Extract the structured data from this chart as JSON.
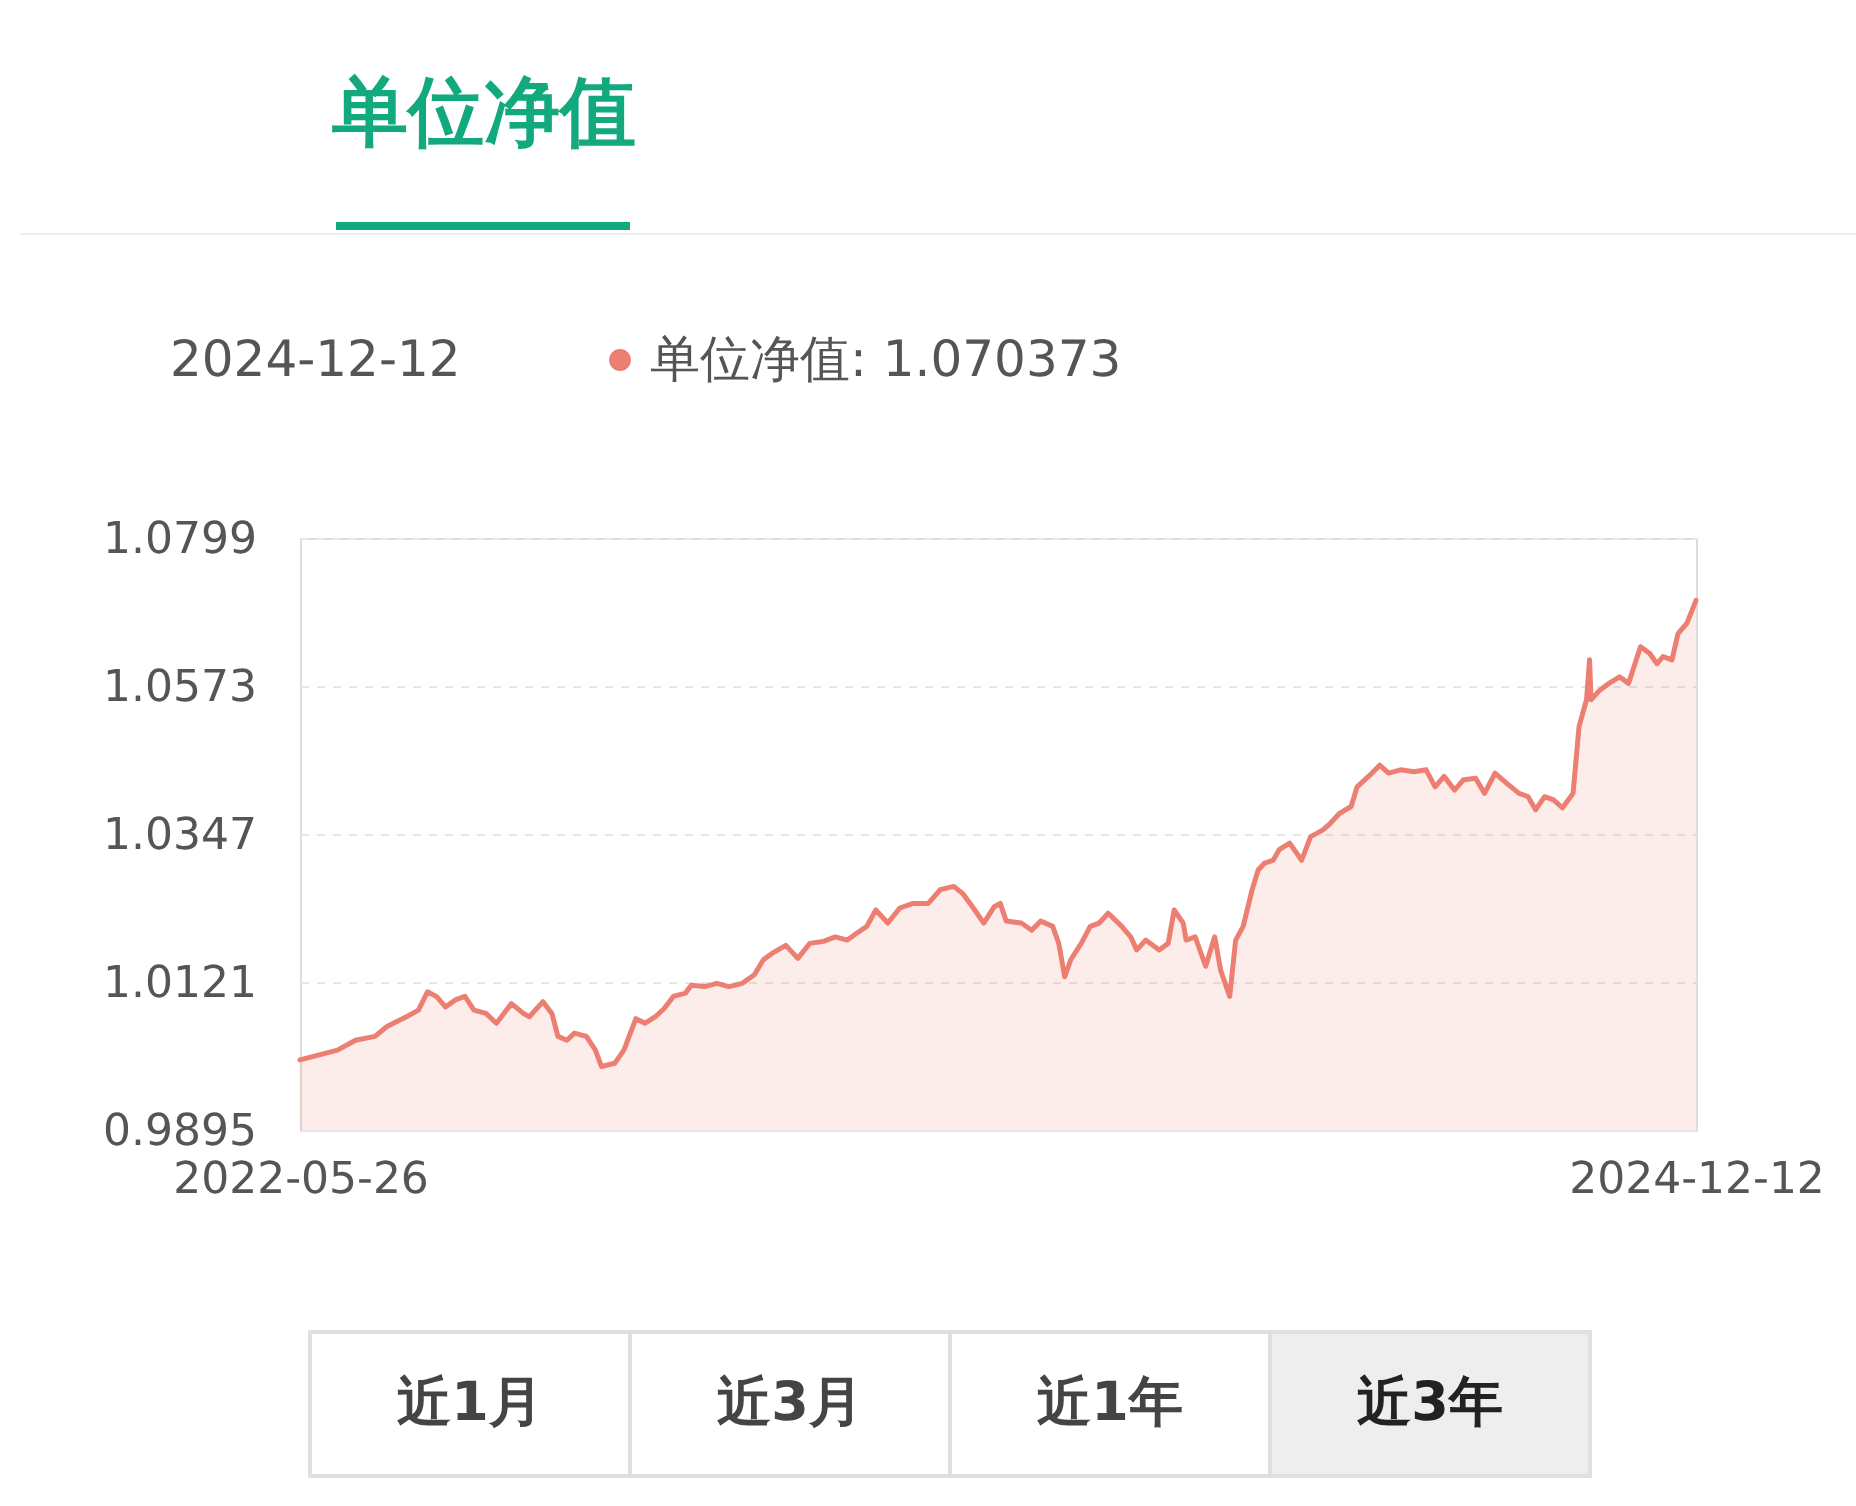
{
  "chart_data": {
    "type": "area",
    "title": "单位净值",
    "annotations": [
      "2024-12-12",
      ": 1.070373",
      "近1月",
      "近3月",
      "近1年",
      "近3年"
    ],
    "x": [
      "2022-05-26",
      "2022-06-20",
      "2022-07-02",
      "2022-07-15",
      "2022-07-23",
      "2022-08-05",
      "2022-08-13",
      "2022-08-19",
      "2022-08-25",
      "2022-08-31",
      "2022-09-07",
      "2022-09-13",
      "2022-09-19",
      "2022-09-27",
      "2022-10-04",
      "2022-10-14",
      "2022-10-22",
      "2022-10-26",
      "2022-11-04",
      "2022-11-10",
      "2022-11-14",
      "2022-11-20",
      "2022-11-25",
      "2022-12-03",
      "2022-12-09",
      "2022-12-13",
      "2022-12-22",
      "2022-12-28",
      "2023-01-05",
      "2023-01-11",
      "2023-01-18",
      "2023-01-24",
      "2023-01-30",
      "2023-02-07",
      "2023-02-11",
      "2023-02-20",
      "2023-02-28",
      "2023-03-08",
      "2023-03-17",
      "2023-03-25",
      "2023-03-31",
      "2023-04-06",
      "2023-04-15",
      "2023-04-23",
      "2023-05-01",
      "2023-05-10",
      "2023-05-18",
      "2023-05-26",
      "2023-06-01",
      "2023-06-08",
      "2023-06-14",
      "2023-06-22",
      "2023-06-30",
      "2023-07-09",
      "2023-07-19",
      "2023-07-27",
      "2023-08-05",
      "2023-08-11",
      "2023-08-19",
      "2023-08-25",
      "2023-09-01",
      "2023-09-05",
      "2023-09-09",
      "2023-09-19",
      "2023-09-26",
      "2023-10-02",
      "2023-10-10",
      "2023-10-14",
      "2023-10-18",
      "2023-10-22",
      "2023-10-29",
      "2023-11-04",
      "2023-11-10",
      "2023-11-16",
      "2023-11-25",
      "2023-12-01",
      "2023-12-05",
      "2023-12-11",
      "2023-12-20",
      "2023-12-26",
      "2023-12-30",
      "2024-01-05",
      "2024-01-07",
      "2024-01-13",
      "2024-01-20",
      "2024-01-26",
      "2024-01-30",
      "2024-02-05",
      "2024-02-09",
      "2024-02-14",
      "2024-02-20",
      "2024-02-24",
      "2024-02-28",
      "2024-03-05",
      "2024-03-09",
      "2024-03-16",
      "2024-03-24",
      "2024-03-30",
      "2024-04-07",
      "2024-04-12",
      "2024-04-18",
      "2024-04-26",
      "2024-04-30",
      "2024-05-09",
      "2024-05-15",
      "2024-05-21",
      "2024-05-29",
      "2024-06-07",
      "2024-06-15",
      "2024-06-21",
      "2024-06-27",
      "2024-07-04",
      "2024-07-10",
      "2024-07-18",
      "2024-07-24",
      "2024-07-31",
      "2024-08-08",
      "2024-08-16",
      "2024-08-22",
      "2024-08-27",
      "2024-09-02",
      "2024-09-08",
      "2024-09-14",
      "2024-09-21",
      "2024-09-25",
      "2024-09-30",
      "2024-10-02",
      "2024-10-03",
      "2024-10-09",
      "2024-10-15",
      "2024-10-22",
      "2024-10-28",
      "2024-11-05",
      "2024-11-11",
      "2024-11-16",
      "2024-11-20",
      "2024-11-26",
      "2024-11-30",
      "2024-12-06",
      "2024-12-12"
    ],
    "series": [
      {
        "name": "单位净值",
        "color": "#ec7f72",
        "values": [
          1.0002,
          1.0017,
          1.0032,
          1.0038,
          1.0053,
          1.0068,
          1.0078,
          1.0106,
          1.0099,
          1.0083,
          1.0094,
          1.0099,
          1.0078,
          1.0073,
          1.0058,
          1.0088,
          1.0073,
          1.0068,
          1.0091,
          1.0073,
          1.0038,
          1.0032,
          1.0043,
          1.0038,
          1.0017,
          0.9992,
          0.9997,
          1.0017,
          1.0065,
          1.0058,
          1.0068,
          1.0081,
          1.0099,
          1.0104,
          1.0116,
          1.0114,
          1.0119,
          1.0114,
          1.0119,
          1.0132,
          1.0155,
          1.0165,
          1.0177,
          1.0157,
          1.018,
          1.0183,
          1.019,
          1.0185,
          1.0195,
          1.0206,
          1.0231,
          1.0211,
          1.0234,
          1.0241,
          1.0241,
          1.0262,
          1.0267,
          1.0256,
          1.0231,
          1.0211,
          1.0236,
          1.0241,
          1.0214,
          1.0211,
          1.02,
          1.0214,
          1.0206,
          1.018,
          1.0129,
          1.0155,
          1.018,
          1.0206,
          1.0211,
          1.0226,
          1.0206,
          1.019,
          1.017,
          1.0185,
          1.017,
          1.018,
          1.0231,
          1.0211,
          1.0185,
          1.019,
          1.0145,
          1.019,
          1.0139,
          1.0099,
          1.0185,
          1.0206,
          1.0262,
          1.0292,
          1.0302,
          1.0307,
          1.0323,
          1.0333,
          1.0307,
          1.0343,
          1.0353,
          1.0363,
          1.0378,
          1.0389,
          1.0419,
          1.0438,
          1.0452,
          1.044,
          1.0445,
          1.0442,
          1.0445,
          1.0419,
          1.0435,
          1.0414,
          1.043,
          1.0432,
          1.0409,
          1.044,
          1.0424,
          1.0409,
          1.0404,
          1.0384,
          1.0404,
          1.0399,
          1.0387,
          1.0409,
          1.0511,
          1.0552,
          1.0613,
          1.0552,
          1.0567,
          1.0577,
          1.0587,
          1.0577,
          1.0633,
          1.0623,
          1.0607,
          1.0618,
          1.0613,
          1.0653,
          1.0669,
          1.070373
        ]
      }
    ],
    "xlim": [
      "2022-05-26",
      "2024-12-12"
    ],
    "xticks": [
      "2022-05-26",
      "2024-12-12"
    ],
    "ylim": [
      0.9895,
      1.0799
    ],
    "yticks": [
      0.9895,
      1.0121,
      1.0347,
      1.0573,
      1.0799
    ],
    "grid": "y",
    "legend": "top left"
  }
}
